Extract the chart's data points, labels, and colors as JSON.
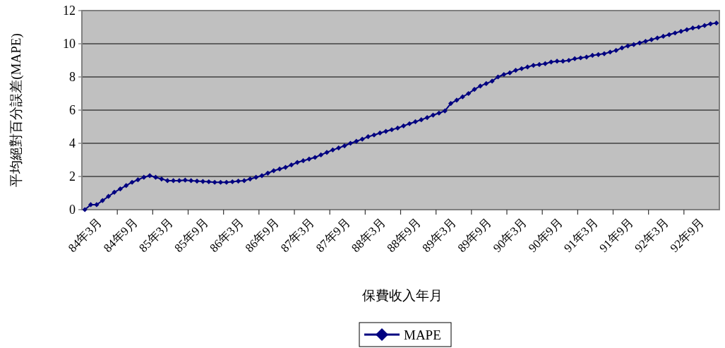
{
  "chart_data": {
    "type": "line",
    "xlabel": "保費收入年月",
    "ylabel": "平均絕對百分誤差(MAPE)",
    "categories": [
      "84年3月",
      null,
      null,
      null,
      null,
      null,
      "84年9月",
      null,
      null,
      null,
      null,
      null,
      "85年3月",
      null,
      null,
      null,
      null,
      null,
      "85年9月",
      null,
      null,
      null,
      null,
      null,
      "86年3月",
      null,
      null,
      null,
      null,
      null,
      "86年9月",
      null,
      null,
      null,
      null,
      null,
      "87年3月",
      null,
      null,
      null,
      null,
      null,
      "87年9月",
      null,
      null,
      null,
      null,
      null,
      "88年3月",
      null,
      null,
      null,
      null,
      null,
      "88年9月",
      null,
      null,
      null,
      null,
      null,
      "89年3月",
      null,
      null,
      null,
      null,
      null,
      "89年9月",
      null,
      null,
      null,
      null,
      null,
      "90年3月",
      null,
      null,
      null,
      null,
      null,
      "90年9月",
      null,
      null,
      null,
      null,
      null,
      "91年3月",
      null,
      null,
      null,
      null,
      null,
      "91年9月",
      null,
      null,
      null,
      null,
      null,
      "92年3月",
      null,
      null,
      null,
      null,
      null,
      "92年9月",
      null,
      null,
      null,
      null,
      null
    ],
    "series": [
      {
        "name": "MAPE",
        "color": "#000080",
        "values": [
          0,
          0.3,
          0.3,
          0.55,
          0.8,
          1.05,
          1.25,
          1.45,
          1.65,
          1.8,
          1.95,
          2.05,
          1.95,
          1.85,
          1.75,
          1.75,
          1.75,
          1.78,
          1.75,
          1.72,
          1.7,
          1.68,
          1.65,
          1.65,
          1.65,
          1.68,
          1.72,
          1.75,
          1.85,
          1.95,
          2.05,
          2.2,
          2.35,
          2.45,
          2.55,
          2.7,
          2.85,
          2.95,
          3.05,
          3.15,
          3.3,
          3.45,
          3.6,
          3.72,
          3.85,
          4.0,
          4.12,
          4.25,
          4.4,
          4.5,
          4.62,
          4.72,
          4.82,
          4.92,
          5.05,
          5.18,
          5.3,
          5.42,
          5.55,
          5.7,
          5.82,
          5.95,
          6.4,
          6.6,
          6.8,
          7.0,
          7.25,
          7.45,
          7.6,
          7.75,
          8.0,
          8.15,
          8.25,
          8.4,
          8.5,
          8.6,
          8.7,
          8.75,
          8.8,
          8.9,
          8.95,
          8.95,
          9.0,
          9.1,
          9.15,
          9.2,
          9.3,
          9.35,
          9.4,
          9.5,
          9.6,
          9.75,
          9.87,
          9.95,
          10.05,
          10.15,
          10.25,
          10.35,
          10.45,
          10.55,
          10.65,
          10.75,
          10.85,
          10.95,
          11.0,
          11.1,
          11.2,
          11.25
        ]
      }
    ],
    "ylim": [
      0,
      12
    ],
    "yticks": [
      0,
      2,
      4,
      6,
      8,
      10,
      12
    ],
    "grid": "y",
    "legend": "bottom",
    "marker": "diamond",
    "line_style": "solid"
  }
}
